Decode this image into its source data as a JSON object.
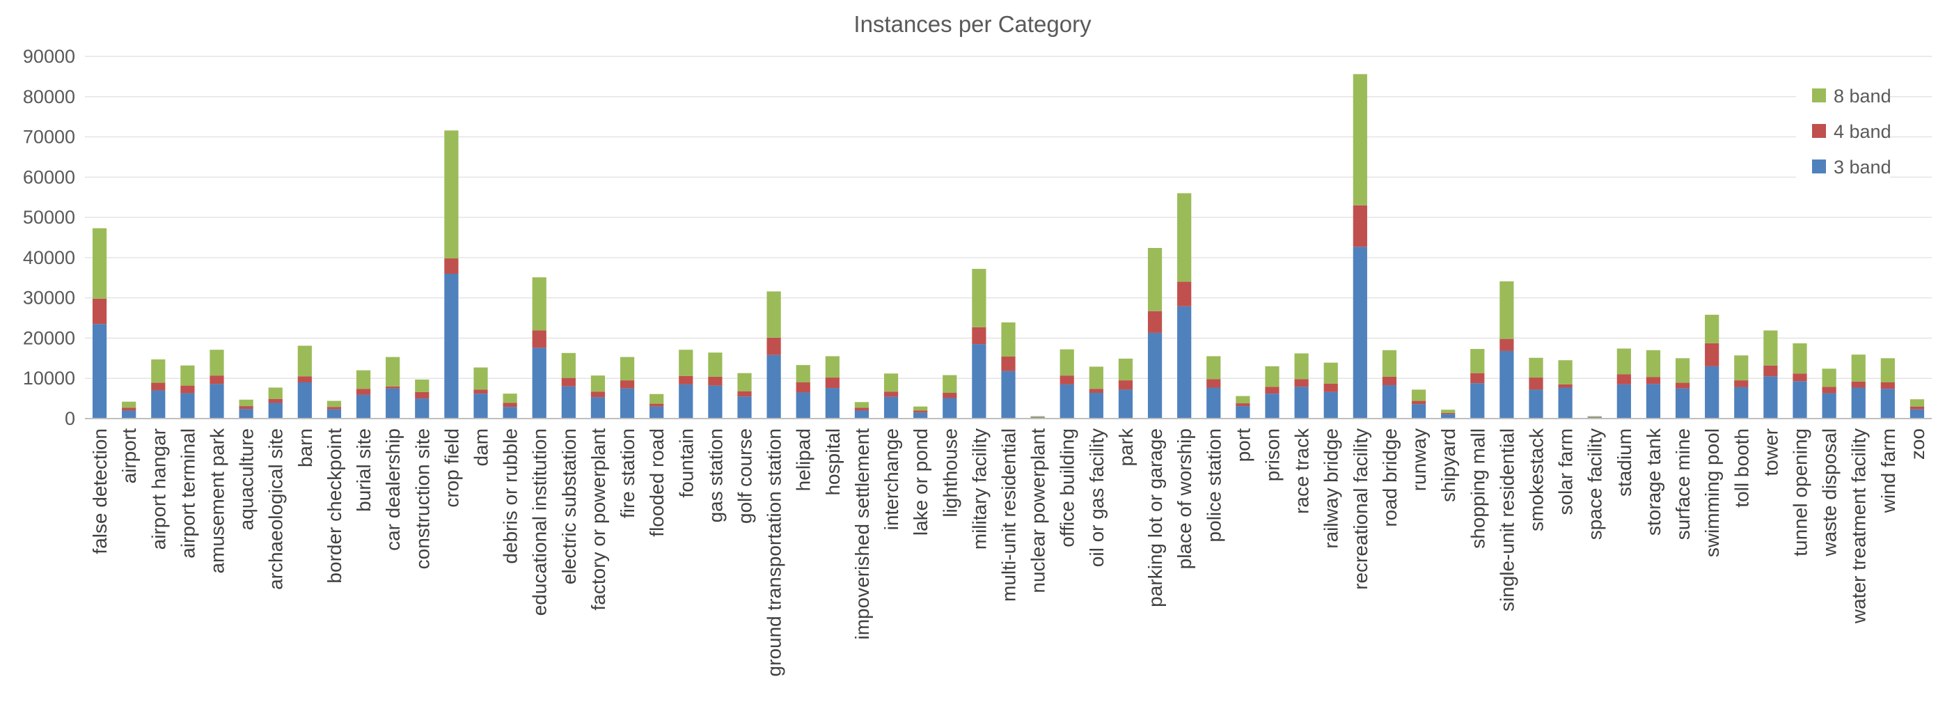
{
  "chart_data": {
    "type": "bar",
    "stacked": true,
    "title": "Instances per Category",
    "xlabel": "",
    "ylabel": "",
    "ylim": [
      0,
      90000
    ],
    "yticks": [
      0,
      10000,
      20000,
      30000,
      40000,
      50000,
      60000,
      70000,
      80000,
      90000
    ],
    "grid": true,
    "legend_position": "right",
    "categories": [
      "false detection",
      "airport",
      "airport hangar",
      "airport terminal",
      "amusement park",
      "aquaculture",
      "archaeological site",
      "barn",
      "border checkpoint",
      "burial site",
      "car dealership",
      "construction site",
      "crop field",
      "dam",
      "debris or rubble",
      "educational institution",
      "electric substation",
      "factory or powerplant",
      "fire station",
      "flooded road",
      "fountain",
      "gas station",
      "golf course",
      "ground transportation station",
      "helipad",
      "hospital",
      "impoverished settlement",
      "interchange",
      "lake or pond",
      "lighthouse",
      "military facility",
      "multi-unit residential",
      "nuclear powerplant",
      "office building",
      "oil or gas facility",
      "park",
      "parking lot or garage",
      "place of worship",
      "police station",
      "port",
      "prison",
      "race track",
      "railway bridge",
      "recreational facility",
      "road bridge",
      "runway",
      "shipyard",
      "shopping mall",
      "single-unit residential",
      "smokestack",
      "solar farm",
      "space facility",
      "stadium",
      "storage tank",
      "surface mine",
      "swimming pool",
      "toll booth",
      "tower",
      "tunnel opening",
      "waste disposal",
      "water treatment facility",
      "wind farm",
      "zoo"
    ],
    "series": [
      {
        "name": "3 band",
        "color": "#4f81bd",
        "values": [
          23500,
          2000,
          7000,
          6300,
          8600,
          2400,
          3900,
          9000,
          2300,
          5900,
          7500,
          5000,
          36000,
          6200,
          2900,
          17600,
          8000,
          5300,
          7500,
          3000,
          8500,
          8200,
          5500,
          15800,
          6500,
          7600,
          2000,
          5400,
          1500,
          5100,
          18500,
          11800,
          300,
          8500,
          6400,
          7200,
          21300,
          27900,
          7700,
          3100,
          6200,
          7900,
          6600,
          42700,
          8300,
          3600,
          1100,
          8800,
          16800,
          7200,
          7700,
          300,
          8500,
          8600,
          7500,
          13000,
          7800,
          10500,
          9300,
          6300,
          7700,
          7400,
          2300
        ]
      },
      {
        "name": "4 band",
        "color": "#c0504d",
        "values": [
          6300,
          700,
          1900,
          1900,
          2100,
          700,
          1000,
          1500,
          600,
          1500,
          500,
          1600,
          3800,
          1000,
          1000,
          4300,
          2100,
          1400,
          2000,
          700,
          2100,
          2200,
          1300,
          4300,
          2500,
          2600,
          700,
          1300,
          500,
          1300,
          4200,
          3600,
          100,
          2200,
          1000,
          2300,
          5400,
          6100,
          2100,
          700,
          1700,
          1900,
          2100,
          10300,
          2100,
          800,
          300,
          2500,
          3000,
          3000,
          800,
          100,
          2500,
          1700,
          1400,
          5700,
          1700,
          2700,
          1900,
          1600,
          1500,
          1600,
          700
        ]
      },
      {
        "name": "8 band",
        "color": "#9bbb59",
        "values": [
          17500,
          1500,
          5800,
          5000,
          6400,
          1600,
          2800,
          7600,
          1500,
          4600,
          7300,
          3100,
          31800,
          5500,
          2300,
          13200,
          6200,
          4000,
          5800,
          2400,
          6500,
          6000,
          4500,
          11500,
          4300,
          5300,
          1400,
          4500,
          1000,
          4400,
          14500,
          8500,
          200,
          6500,
          5500,
          5400,
          15700,
          22000,
          5700,
          1800,
          5100,
          6400,
          5200,
          32600,
          6600,
          2800,
          800,
          6000,
          14300,
          4900,
          6000,
          200,
          6400,
          6700,
          6100,
          7100,
          6200,
          8700,
          7500,
          4500,
          6700,
          6000,
          1800
        ]
      }
    ]
  }
}
